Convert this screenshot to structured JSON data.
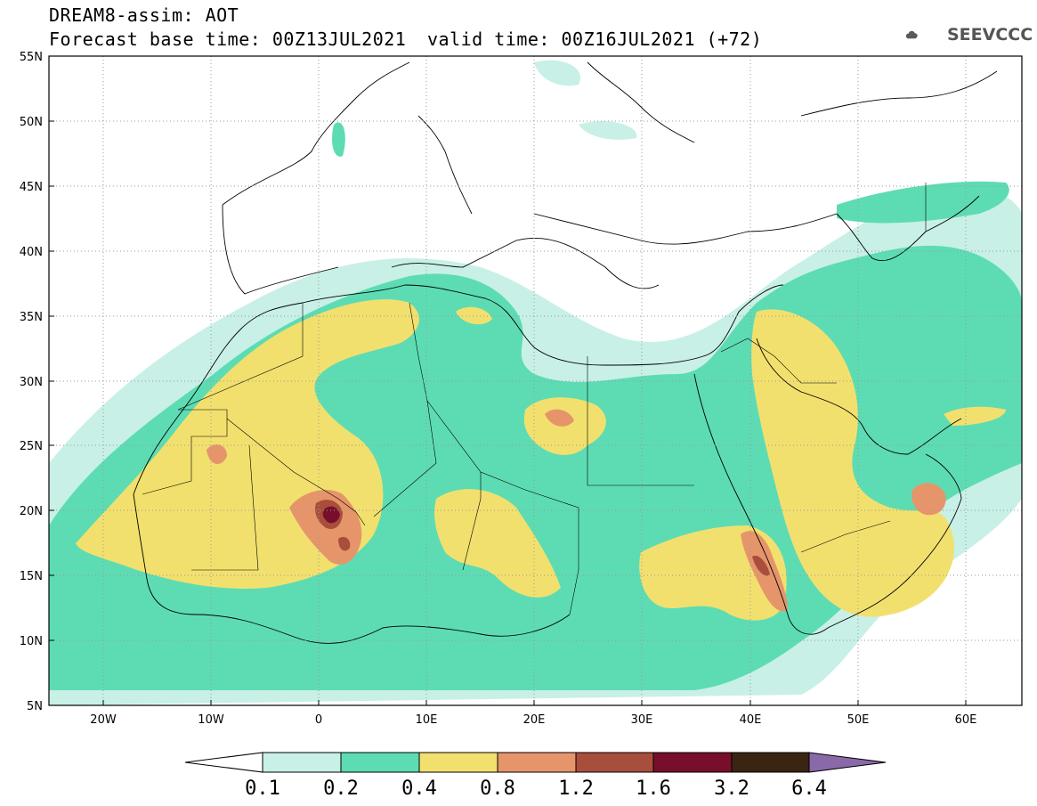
{
  "header": {
    "line1": "DREAM8-assim: AOT",
    "line2": "Forecast base time: 00Z13JUL2021",
    "line3": "valid time: 00Z16JUL2021 (+72)",
    "logo_text": "SEEVCCC"
  },
  "map": {
    "lon_range": [
      -25,
      65
    ],
    "lat_range": [
      5,
      55
    ],
    "lat_ticks": [
      "5N",
      "10N",
      "15N",
      "20N",
      "25N",
      "30N",
      "35N",
      "40N",
      "45N",
      "50N",
      "55N"
    ],
    "lon_ticks": [
      "20W",
      "10W",
      "0",
      "10E",
      "20E",
      "30E",
      "40E",
      "50E",
      "60E"
    ]
  },
  "colorbar": {
    "labels": [
      "0.1",
      "0.2",
      "0.4",
      "0.8",
      "1.2",
      "1.6",
      "3.2",
      "6.4"
    ],
    "colors": [
      "#ffffff",
      "#c8f0e6",
      "#5ddcb4",
      "#f2e06e",
      "#e6956a",
      "#a84e3c",
      "#780f2a",
      "#3a2512",
      "#8a69a8"
    ]
  }
}
